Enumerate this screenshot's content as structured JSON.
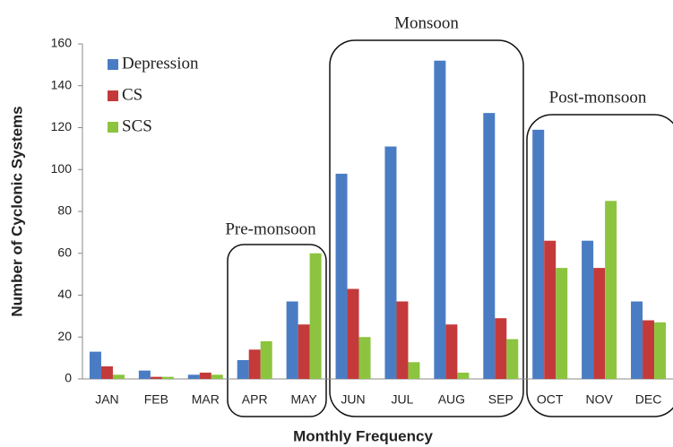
{
  "chart_data": {
    "type": "bar",
    "y_label": "Number of Cyclonic Systems",
    "x_label": "Monthly Frequency",
    "annotations": [
      "Pre-monsoon",
      "Monsoon",
      "Post-monsoon"
    ],
    "categories": [
      "JAN",
      "FEB",
      "MAR",
      "APR",
      "MAY",
      "JUN",
      "JUL",
      "AUG",
      "SEP",
      "OCT",
      "NOV",
      "DEC"
    ],
    "series": [
      {
        "name": "Depression",
        "color": "#4a7cc4",
        "values": [
          13,
          4,
          2,
          9,
          37,
          98,
          111,
          152,
          127,
          119,
          66,
          37
        ]
      },
      {
        "name": "CS",
        "color": "#c43a3a",
        "values": [
          6,
          1,
          3,
          14,
          26,
          43,
          37,
          26,
          29,
          66,
          53,
          28
        ]
      },
      {
        "name": "SCS",
        "color": "#8cc43f",
        "values": [
          2,
          1,
          2,
          18,
          60,
          20,
          8,
          3,
          19,
          53,
          85,
          27
        ]
      }
    ],
    "ylim": [
      0,
      160
    ],
    "yticks": [
      0,
      20,
      40,
      60,
      80,
      100,
      120,
      140,
      160
    ],
    "grid": false
  }
}
